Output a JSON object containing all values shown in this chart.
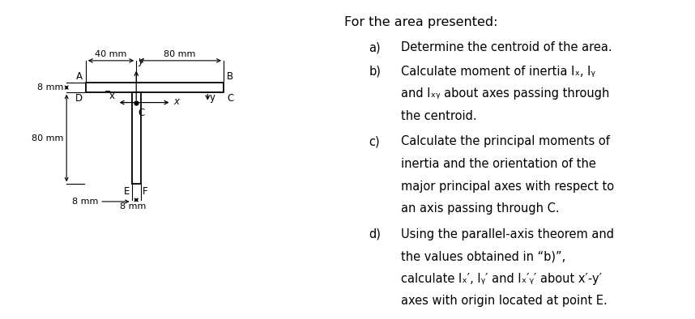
{
  "bg_color": "#ffffff",
  "fig_width": 8.58,
  "fig_height": 3.94,
  "dpi": 100,
  "title_text": "For the area presented:",
  "items_a": "Determine the centroid of the area.",
  "items_b1": "Calculate moment of inertia Iₓ, Iᵧ",
  "items_b2": "and Iₓᵧ about axes passing through",
  "items_b3": "the centroid.",
  "items_c1": "Calculate the principal moments of",
  "items_c2": "inertia and the orientation of the",
  "items_c3": "major principal axes with respect to",
  "items_c4": "an axis passing through C.",
  "items_d1": "Using the parallel-axis theorem and",
  "items_d2": "the values obtained in “b)”,",
  "items_d3": "calculate Iₓ′, Iᵧ′ and Iₓ′ᵧ′ about x′-y′",
  "items_d4": "axes with origin located at point E.",
  "label_a": "a)",
  "label_b": "b)",
  "label_c": "c)",
  "label_d": "d)"
}
